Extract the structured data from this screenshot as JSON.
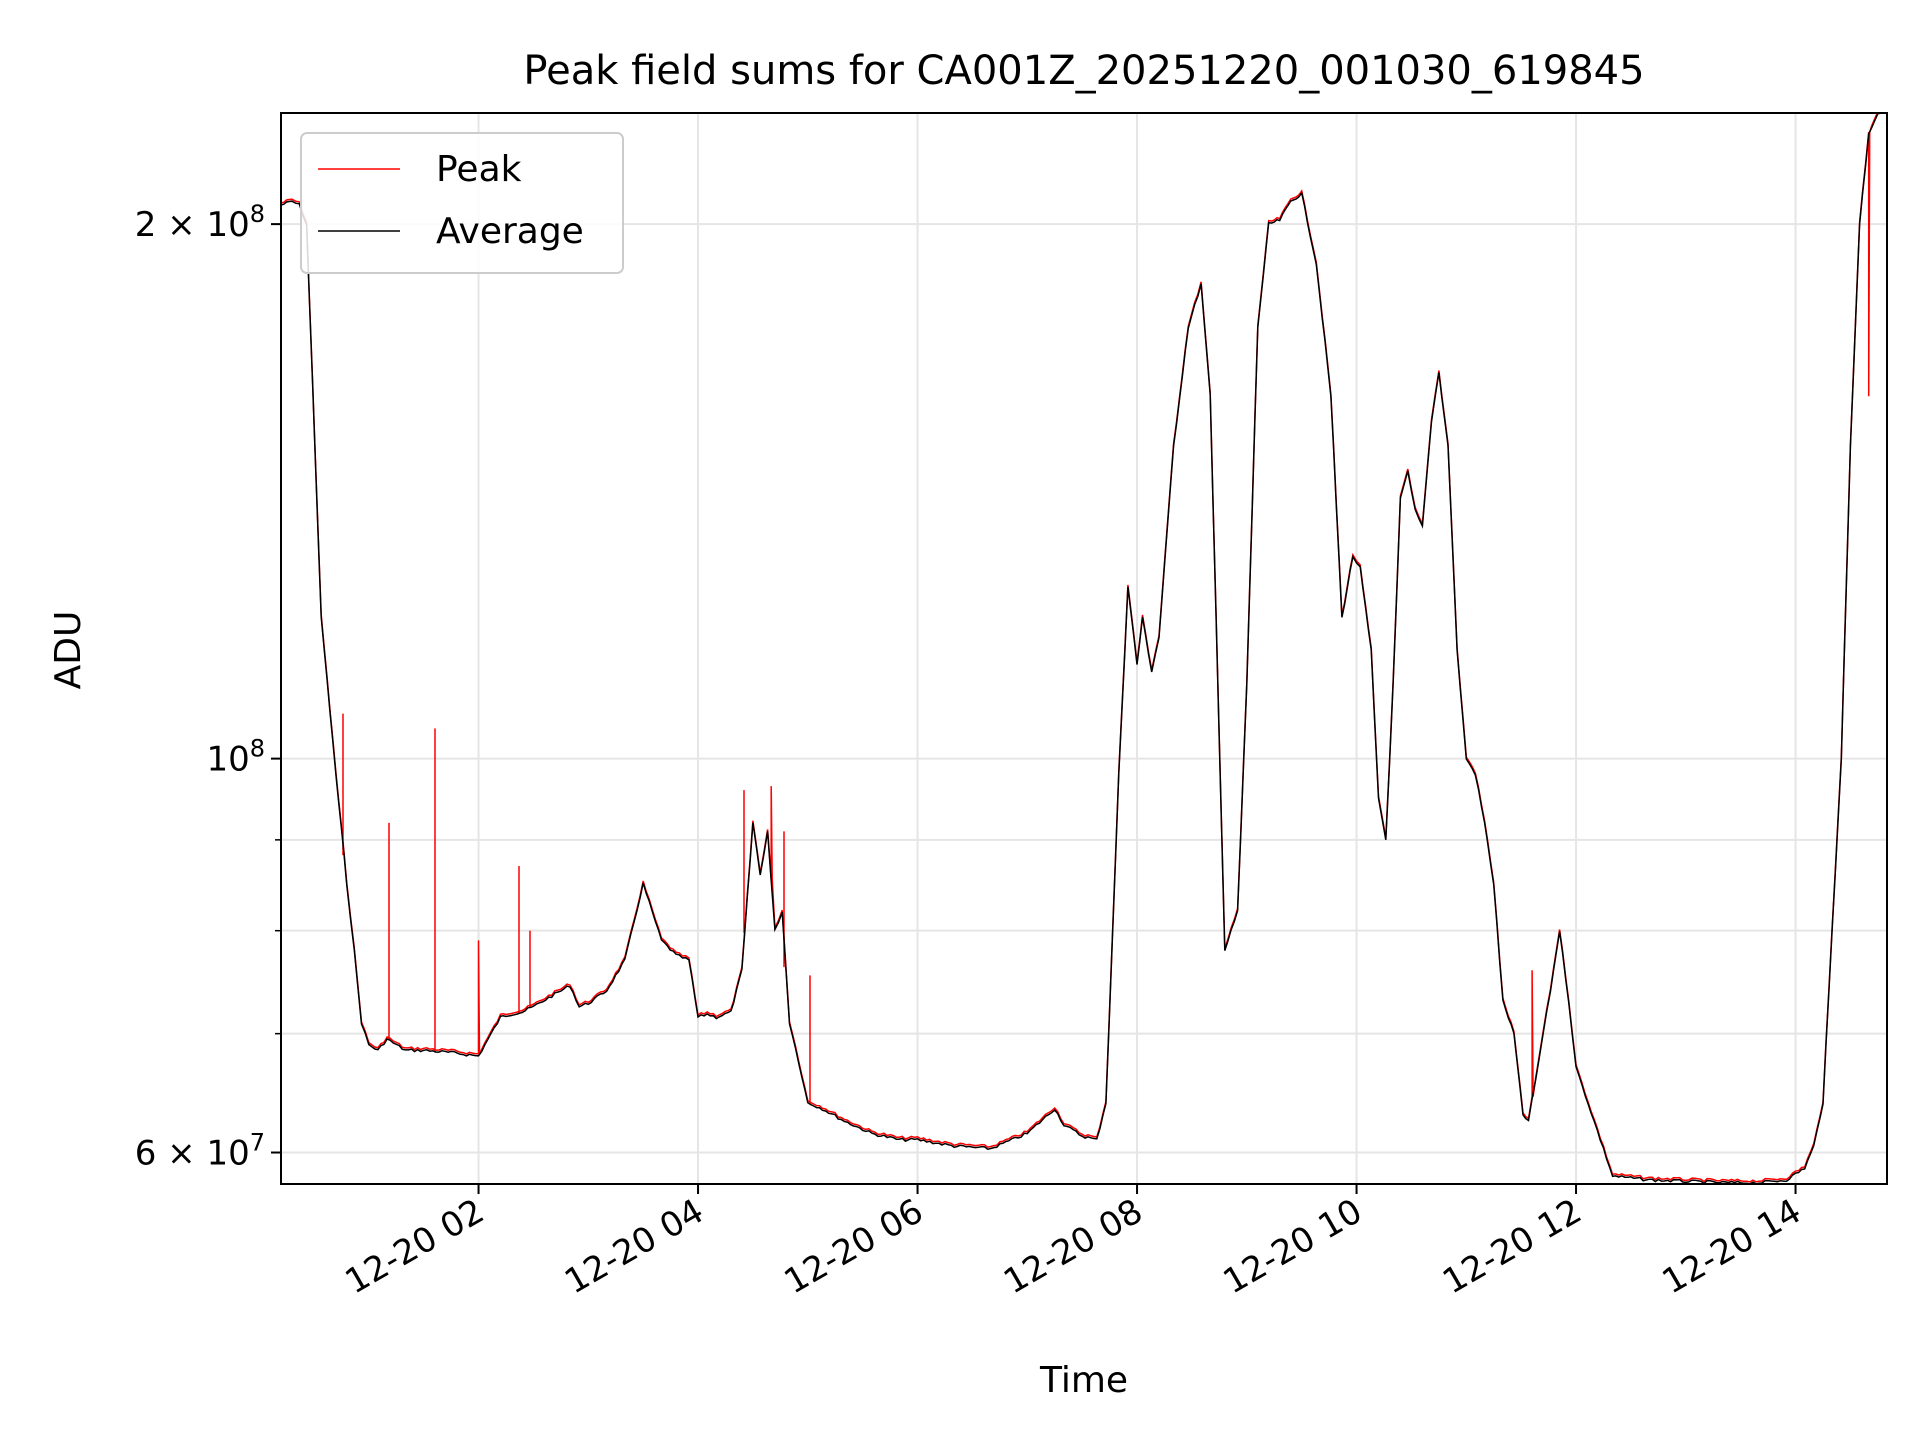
{
  "chart_data": {
    "type": "line",
    "title": "Peak field sums for CA001Z_20251220_001030_619845",
    "xlabel": "Time",
    "ylabel": "ADU",
    "yscale": "log",
    "ylim": [
      57600000,
      231000000
    ],
    "xlim": [
      "12-20 00:12",
      "12-20 14:50"
    ],
    "grid": true,
    "legend": {
      "position": "upper left",
      "entries": [
        "Peak",
        "Average"
      ]
    },
    "x_ticks": [
      {
        "value": "12-20 02:00",
        "label": "12-20 02"
      },
      {
        "value": "12-20 04:00",
        "label": "12-20 04"
      },
      {
        "value": "12-20 06:00",
        "label": "12-20 06"
      },
      {
        "value": "12-20 08:00",
        "label": "12-20 08"
      },
      {
        "value": "12-20 10:00",
        "label": "12-20 10"
      },
      {
        "value": "12-20 12:00",
        "label": "12-20 12"
      },
      {
        "value": "12-20 14:00",
        "label": "12-20 14"
      }
    ],
    "y_major_ticks": [
      {
        "value": 60000000,
        "label_base": "6 × 10",
        "label_exp": "7"
      },
      {
        "value": 100000000,
        "label_base": "10",
        "label_exp": "8"
      },
      {
        "value": 200000000,
        "label_base": "2 × 10",
        "label_exp": "8"
      }
    ],
    "y_minor_ticks": [
      70000000,
      80000000,
      90000000
    ],
    "series": [
      {
        "name": "Average",
        "color": "#000000",
        "x": [
          "00:12",
          "00:18",
          "00:22",
          "00:26",
          "00:34",
          "00:42",
          "00:48",
          "00:52",
          "00:56",
          "01:00",
          "01:05",
          "01:10",
          "01:20",
          "01:30",
          "01:45",
          "02:00",
          "02:12",
          "02:18",
          "02:24",
          "02:30",
          "02:40",
          "02:50",
          "02:55",
          "03:00",
          "03:10",
          "03:20",
          "03:30",
          "03:40",
          "03:48",
          "03:55",
          "04:00",
          "04:05",
          "04:10",
          "04:18",
          "04:24",
          "04:30",
          "04:34",
          "04:38",
          "04:42",
          "04:46",
          "04:50",
          "04:55",
          "05:00",
          "05:08",
          "05:20",
          "05:35",
          "05:50",
          "06:00",
          "06:20",
          "06:40",
          "07:00",
          "07:15",
          "07:20",
          "07:30",
          "07:38",
          "07:43",
          "07:50",
          "07:55",
          "08:00",
          "08:03",
          "08:08",
          "08:12",
          "08:20",
          "08:28",
          "08:35",
          "08:40",
          "08:48",
          "08:55",
          "09:00",
          "09:06",
          "09:12",
          "09:18",
          "09:24",
          "09:30",
          "09:38",
          "09:46",
          "09:52",
          "09:58",
          "10:02",
          "10:08",
          "10:12",
          "10:16",
          "10:20",
          "10:24",
          "10:28",
          "10:32",
          "10:36",
          "10:41",
          "10:45",
          "10:50",
          "10:55",
          "11:00",
          "11:05",
          "11:10",
          "11:15",
          "11:20",
          "11:26",
          "11:31",
          "11:34",
          "11:38",
          "11:42",
          "11:46",
          "11:51",
          "11:56",
          "12:00",
          "12:20",
          "12:40",
          "13:00",
          "13:20",
          "13:40",
          "13:55",
          "14:05",
          "14:10",
          "14:15",
          "14:20",
          "14:25",
          "14:30",
          "14:35",
          "14:40",
          "14:45",
          "14:50"
        ],
        "y": [
          205000000,
          206000000,
          205000000,
          200000000,
          120000000,
          98000000,
          85000000,
          78000000,
          71000000,
          69000000,
          68500000,
          69500000,
          68500000,
          68500000,
          68300000,
          68000000,
          71500000,
          71800000,
          72000000,
          72500000,
          73500000,
          74500000,
          72500000,
          72800000,
          74000000,
          77000000,
          85000000,
          79000000,
          77500000,
          77000000,
          71500000,
          71800000,
          71500000,
          72000000,
          76000000,
          92000000,
          86000000,
          91000000,
          80000000,
          82000000,
          71000000,
          67500000,
          64000000,
          63500000,
          62500000,
          61500000,
          61000000,
          61000000,
          60500000,
          60300000,
          61500000,
          63500000,
          62200000,
          61300000,
          61000000,
          64000000,
          98000000,
          125000000,
          113000000,
          120000000,
          112000000,
          117000000,
          150000000,
          175000000,
          185000000,
          160000000,
          78000000,
          82000000,
          110000000,
          175000000,
          200000000,
          201000000,
          206000000,
          208000000,
          190000000,
          160000000,
          120000000,
          130000000,
          128000000,
          115000000,
          95000000,
          90000000,
          110000000,
          140000000,
          145000000,
          138000000,
          135000000,
          155000000,
          165000000,
          150000000,
          115000000,
          100000000,
          98000000,
          92000000,
          85000000,
          73000000,
          70000000,
          63000000,
          62500000,
          66000000,
          70000000,
          74000000,
          80000000,
          73000000,
          67000000,
          58200000,
          57900000,
          57800000,
          57700000,
          57700000,
          57900000,
          58800000,
          60500000,
          64000000,
          80000000,
          100000000,
          150000000,
          200000000,
          225000000,
          231000000,
          231000000
        ]
      },
      {
        "name": "Peak",
        "color": "#ff0000",
        "spikes": [
          {
            "x": "00:46",
            "y": 106000000
          },
          {
            "x": "01:11",
            "y": 92000000
          },
          {
            "x": "01:36",
            "y": 104000000
          },
          {
            "x": "02:00",
            "y": 79000000
          },
          {
            "x": "02:22",
            "y": 87000000
          },
          {
            "x": "02:28",
            "y": 80000000
          },
          {
            "x": "04:25",
            "y": 96000000
          },
          {
            "x": "04:40",
            "y": 96500000
          },
          {
            "x": "04:47",
            "y": 91000000
          },
          {
            "x": "05:01",
            "y": 75500000
          },
          {
            "x": "11:36",
            "y": 76000000
          },
          {
            "x": "14:40",
            "y": 160000000
          }
        ]
      }
    ]
  }
}
